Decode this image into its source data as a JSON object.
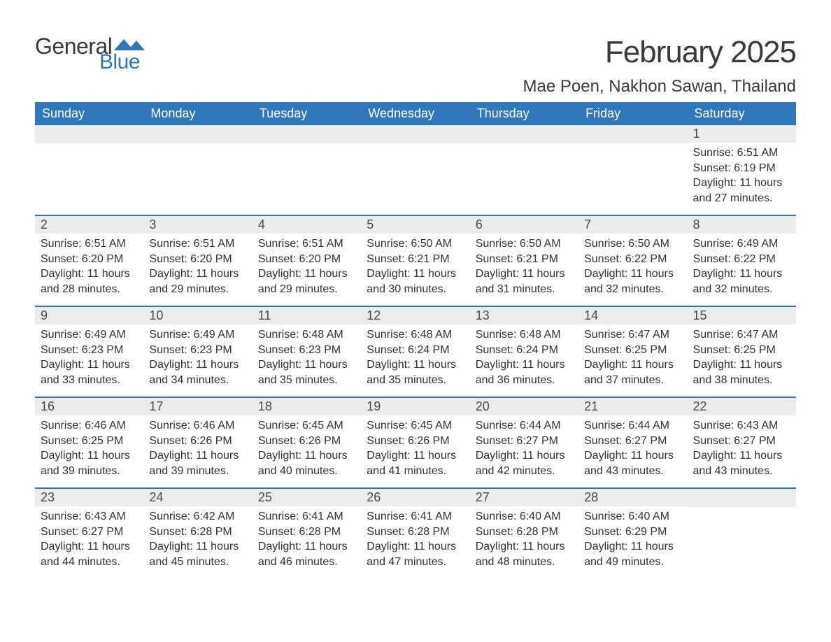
{
  "logo": {
    "text_general": "General",
    "text_blue": "Blue",
    "icon_color": "#2f76bb"
  },
  "title": "February 2025",
  "location": "Mae Poen, Nakhon Sawan, Thailand",
  "colors": {
    "header_bg": "#2f76bb",
    "header_text": "#ffffff",
    "daynum_bg": "#ececec",
    "body_text": "#333333",
    "rule": "#2f76bb"
  },
  "day_names": [
    "Sunday",
    "Monday",
    "Tuesday",
    "Wednesday",
    "Thursday",
    "Friday",
    "Saturday"
  ],
  "weeks": [
    [
      {
        "day": "",
        "sunrise": "",
        "sunset": "",
        "daylight": ""
      },
      {
        "day": "",
        "sunrise": "",
        "sunset": "",
        "daylight": ""
      },
      {
        "day": "",
        "sunrise": "",
        "sunset": "",
        "daylight": ""
      },
      {
        "day": "",
        "sunrise": "",
        "sunset": "",
        "daylight": ""
      },
      {
        "day": "",
        "sunrise": "",
        "sunset": "",
        "daylight": ""
      },
      {
        "day": "",
        "sunrise": "",
        "sunset": "",
        "daylight": ""
      },
      {
        "day": "1",
        "sunrise": "Sunrise: 6:51 AM",
        "sunset": "Sunset: 6:19 PM",
        "daylight": "Daylight: 11 hours and 27 minutes."
      }
    ],
    [
      {
        "day": "2",
        "sunrise": "Sunrise: 6:51 AM",
        "sunset": "Sunset: 6:20 PM",
        "daylight": "Daylight: 11 hours and 28 minutes."
      },
      {
        "day": "3",
        "sunrise": "Sunrise: 6:51 AM",
        "sunset": "Sunset: 6:20 PM",
        "daylight": "Daylight: 11 hours and 29 minutes."
      },
      {
        "day": "4",
        "sunrise": "Sunrise: 6:51 AM",
        "sunset": "Sunset: 6:20 PM",
        "daylight": "Daylight: 11 hours and 29 minutes."
      },
      {
        "day": "5",
        "sunrise": "Sunrise: 6:50 AM",
        "sunset": "Sunset: 6:21 PM",
        "daylight": "Daylight: 11 hours and 30 minutes."
      },
      {
        "day": "6",
        "sunrise": "Sunrise: 6:50 AM",
        "sunset": "Sunset: 6:21 PM",
        "daylight": "Daylight: 11 hours and 31 minutes."
      },
      {
        "day": "7",
        "sunrise": "Sunrise: 6:50 AM",
        "sunset": "Sunset: 6:22 PM",
        "daylight": "Daylight: 11 hours and 32 minutes."
      },
      {
        "day": "8",
        "sunrise": "Sunrise: 6:49 AM",
        "sunset": "Sunset: 6:22 PM",
        "daylight": "Daylight: 11 hours and 32 minutes."
      }
    ],
    [
      {
        "day": "9",
        "sunrise": "Sunrise: 6:49 AM",
        "sunset": "Sunset: 6:23 PM",
        "daylight": "Daylight: 11 hours and 33 minutes."
      },
      {
        "day": "10",
        "sunrise": "Sunrise: 6:49 AM",
        "sunset": "Sunset: 6:23 PM",
        "daylight": "Daylight: 11 hours and 34 minutes."
      },
      {
        "day": "11",
        "sunrise": "Sunrise: 6:48 AM",
        "sunset": "Sunset: 6:23 PM",
        "daylight": "Daylight: 11 hours and 35 minutes."
      },
      {
        "day": "12",
        "sunrise": "Sunrise: 6:48 AM",
        "sunset": "Sunset: 6:24 PM",
        "daylight": "Daylight: 11 hours and 35 minutes."
      },
      {
        "day": "13",
        "sunrise": "Sunrise: 6:48 AM",
        "sunset": "Sunset: 6:24 PM",
        "daylight": "Daylight: 11 hours and 36 minutes."
      },
      {
        "day": "14",
        "sunrise": "Sunrise: 6:47 AM",
        "sunset": "Sunset: 6:25 PM",
        "daylight": "Daylight: 11 hours and 37 minutes."
      },
      {
        "day": "15",
        "sunrise": "Sunrise: 6:47 AM",
        "sunset": "Sunset: 6:25 PM",
        "daylight": "Daylight: 11 hours and 38 minutes."
      }
    ],
    [
      {
        "day": "16",
        "sunrise": "Sunrise: 6:46 AM",
        "sunset": "Sunset: 6:25 PM",
        "daylight": "Daylight: 11 hours and 39 minutes."
      },
      {
        "day": "17",
        "sunrise": "Sunrise: 6:46 AM",
        "sunset": "Sunset: 6:26 PM",
        "daylight": "Daylight: 11 hours and 39 minutes."
      },
      {
        "day": "18",
        "sunrise": "Sunrise: 6:45 AM",
        "sunset": "Sunset: 6:26 PM",
        "daylight": "Daylight: 11 hours and 40 minutes."
      },
      {
        "day": "19",
        "sunrise": "Sunrise: 6:45 AM",
        "sunset": "Sunset: 6:26 PM",
        "daylight": "Daylight: 11 hours and 41 minutes."
      },
      {
        "day": "20",
        "sunrise": "Sunrise: 6:44 AM",
        "sunset": "Sunset: 6:27 PM",
        "daylight": "Daylight: 11 hours and 42 minutes."
      },
      {
        "day": "21",
        "sunrise": "Sunrise: 6:44 AM",
        "sunset": "Sunset: 6:27 PM",
        "daylight": "Daylight: 11 hours and 43 minutes."
      },
      {
        "day": "22",
        "sunrise": "Sunrise: 6:43 AM",
        "sunset": "Sunset: 6:27 PM",
        "daylight": "Daylight: 11 hours and 43 minutes."
      }
    ],
    [
      {
        "day": "23",
        "sunrise": "Sunrise: 6:43 AM",
        "sunset": "Sunset: 6:27 PM",
        "daylight": "Daylight: 11 hours and 44 minutes."
      },
      {
        "day": "24",
        "sunrise": "Sunrise: 6:42 AM",
        "sunset": "Sunset: 6:28 PM",
        "daylight": "Daylight: 11 hours and 45 minutes."
      },
      {
        "day": "25",
        "sunrise": "Sunrise: 6:41 AM",
        "sunset": "Sunset: 6:28 PM",
        "daylight": "Daylight: 11 hours and 46 minutes."
      },
      {
        "day": "26",
        "sunrise": "Sunrise: 6:41 AM",
        "sunset": "Sunset: 6:28 PM",
        "daylight": "Daylight: 11 hours and 47 minutes."
      },
      {
        "day": "27",
        "sunrise": "Sunrise: 6:40 AM",
        "sunset": "Sunset: 6:28 PM",
        "daylight": "Daylight: 11 hours and 48 minutes."
      },
      {
        "day": "28",
        "sunrise": "Sunrise: 6:40 AM",
        "sunset": "Sunset: 6:29 PM",
        "daylight": "Daylight: 11 hours and 49 minutes."
      },
      {
        "day": "",
        "sunrise": "",
        "sunset": "",
        "daylight": ""
      }
    ]
  ]
}
